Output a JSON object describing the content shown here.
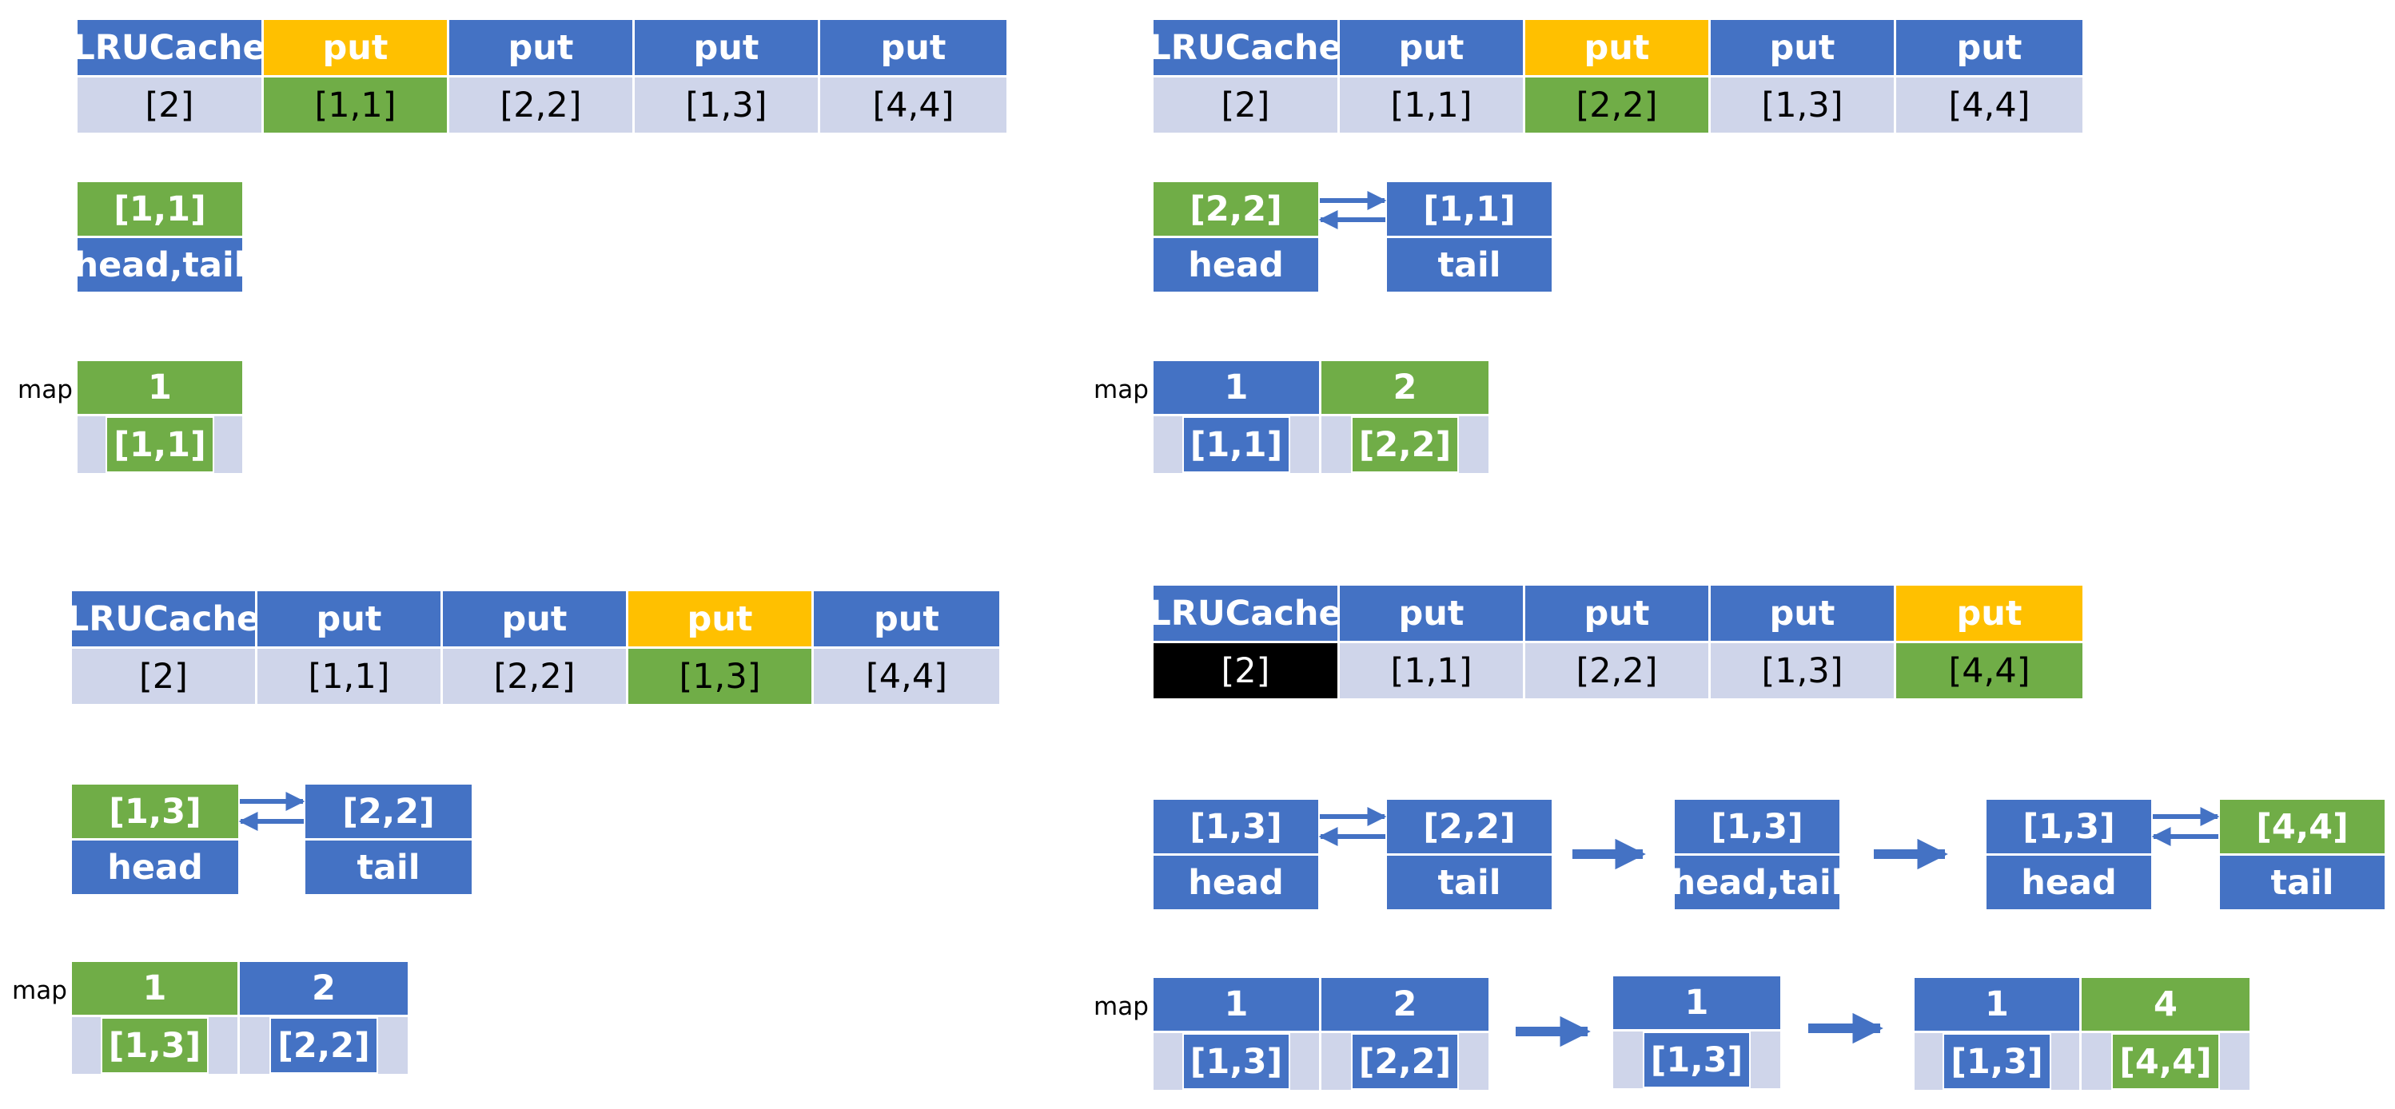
{
  "ops_row": {
    "h0": "LRUCache",
    "h1": "put",
    "h2": "put",
    "h3": "put",
    "h4": "put",
    "a0": "[2]",
    "a1": "[1,1]",
    "a2": "[2,2]",
    "a3": "[1,3]",
    "a4": "[4,4]"
  },
  "map_label": "map",
  "panel1": {
    "node1": {
      "value": "[1,1]",
      "role": "head,tail"
    },
    "map": [
      {
        "key": "1",
        "value": "[1,1]"
      }
    ]
  },
  "panel2": {
    "node1": {
      "value": "[2,2]",
      "role": "head"
    },
    "node2": {
      "value": "[1,1]",
      "role": "tail"
    },
    "map": [
      {
        "key": "1",
        "value": "[1,1]"
      },
      {
        "key": "2",
        "value": "[2,2]"
      }
    ]
  },
  "panel3": {
    "node1": {
      "value": "[1,3]",
      "role": "head"
    },
    "node2": {
      "value": "[2,2]",
      "role": "tail"
    },
    "map": [
      {
        "key": "1",
        "value": "[1,3]"
      },
      {
        "key": "2",
        "value": "[2,2]"
      }
    ]
  },
  "panel4": {
    "stage1": {
      "node1": {
        "value": "[1,3]",
        "role": "head"
      },
      "node2": {
        "value": "[2,2]",
        "role": "tail"
      },
      "map": [
        {
          "key": "1",
          "value": "[1,3]"
        },
        {
          "key": "2",
          "value": "[2,2]"
        }
      ]
    },
    "stage2": {
      "node1": {
        "value": "[1,3]",
        "role": "head,tail"
      },
      "map": [
        {
          "key": "1",
          "value": "[1,3]"
        }
      ]
    },
    "stage3": {
      "node1": {
        "value": "[1,3]",
        "role": "head"
      },
      "node2": {
        "value": "[4,4]",
        "role": "tail"
      },
      "map": [
        {
          "key": "1",
          "value": "[1,3]"
        },
        {
          "key": "4",
          "value": "[4,4]"
        }
      ]
    }
  },
  "colors": {
    "blue": "#4472c4",
    "highlight_op": "#ffc000",
    "highlight_arg": "#70ad47",
    "light": "#cfd5ea",
    "evicted": "#000000"
  }
}
